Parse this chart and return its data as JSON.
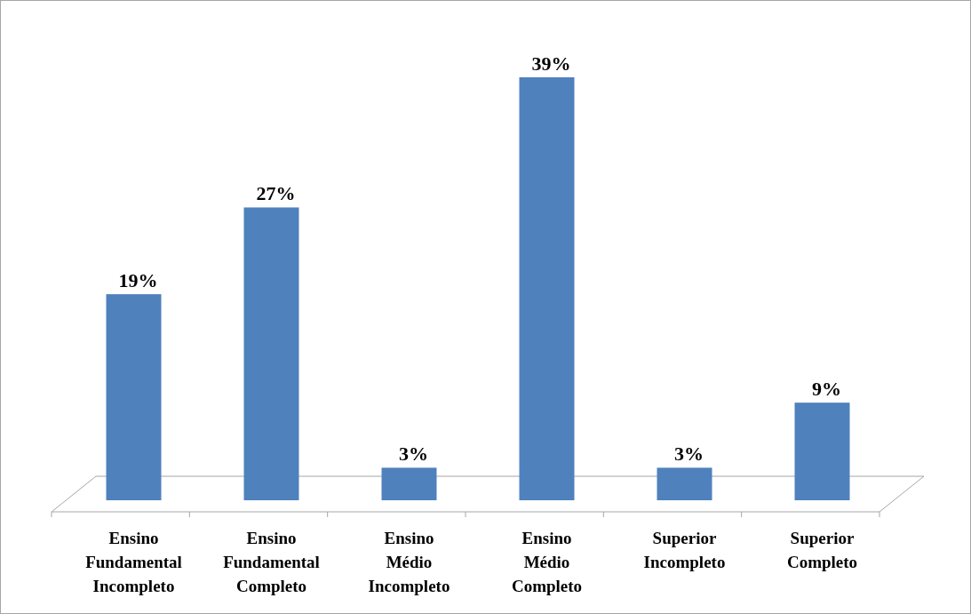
{
  "chart_data": {
    "type": "bar",
    "categories": [
      "Ensino Fundamental Incompleto",
      "Ensino Fundamental Completo",
      "Ensino Médio Incompleto",
      "Ensino Médio Completo",
      "Superior Incompleto",
      "Superior Completo"
    ],
    "values": [
      19,
      27,
      3,
      39,
      3,
      9
    ],
    "value_labels": [
      "19%",
      "27%",
      "3%",
      "39%",
      "3%",
      "9%"
    ],
    "color": "#4f81bd"
  }
}
